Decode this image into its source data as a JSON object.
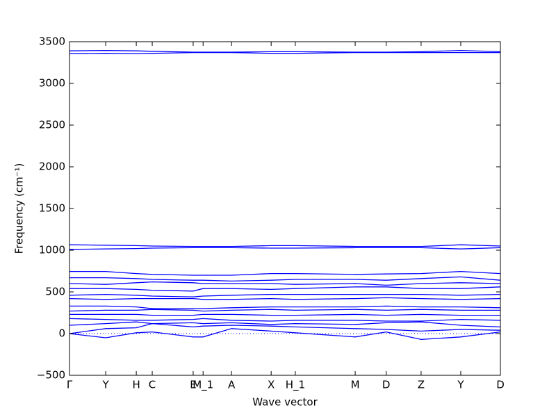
{
  "chart_data": {
    "type": "line",
    "x_label": "Wave vector",
    "y_label": "Frequency (cm⁻¹)",
    "xlim": [
      0,
      1
    ],
    "ylim": [
      -500,
      3500
    ],
    "xticks": [
      {
        "value": 0,
        "label": "Γ"
      },
      {
        "value": 0.084,
        "label": "Y"
      },
      {
        "value": 0.155,
        "label": "H"
      },
      {
        "value": 0.192,
        "label": "C"
      },
      {
        "value": 0.287,
        "label": "E"
      },
      {
        "value": 0.31,
        "label": "M_1"
      },
      {
        "value": 0.376,
        "label": "A"
      },
      {
        "value": 0.468,
        "label": "X"
      },
      {
        "value": 0.524,
        "label": "H_1"
      },
      {
        "value": 0.663,
        "label": "M"
      },
      {
        "value": 0.735,
        "label": "D"
      },
      {
        "value": 0.816,
        "label": "Z"
      },
      {
        "value": 0.908,
        "label": "Y"
      },
      {
        "value": 1,
        "label": "D"
      }
    ],
    "yticks": [
      {
        "value": -500,
        "label": "−500"
      },
      0,
      500,
      1000,
      1500,
      2000,
      2500,
      3000,
      3500
    ],
    "zero_line": 0,
    "x": [
      0,
      0.084,
      0.155,
      0.192,
      0.287,
      0.31,
      0.376,
      0.468,
      0.524,
      0.663,
      0.735,
      0.816,
      0.908,
      1
    ],
    "color": "#0000ff",
    "series": [
      {
        "values": [
          3355,
          3360,
          3355,
          3360,
          3370,
          3370,
          3370,
          3360,
          3360,
          3370,
          3370,
          3370,
          3370,
          3370
        ]
      },
      {
        "values": [
          3390,
          3395,
          3390,
          3385,
          3375,
          3375,
          3375,
          3380,
          3380,
          3375,
          3375,
          3380,
          3395,
          3380
        ]
      },
      {
        "values": [
          1065,
          1060,
          1055,
          1050,
          1045,
          1045,
          1045,
          1055,
          1055,
          1045,
          1045,
          1045,
          1065,
          1050
        ]
      },
      {
        "values": [
          1010,
          1015,
          1020,
          1025,
          1030,
          1030,
          1030,
          1025,
          1025,
          1030,
          1030,
          1030,
          1015,
          1030
        ]
      },
      {
        "values": [
          745,
          745,
          720,
          710,
          700,
          700,
          700,
          720,
          720,
          710,
          715,
          720,
          745,
          720
        ]
      },
      {
        "values": [
          670,
          670,
          660,
          650,
          640,
          640,
          630,
          640,
          650,
          650,
          640,
          660,
          680,
          640
        ]
      },
      {
        "values": [
          600,
          590,
          610,
          620,
          610,
          600,
          600,
          600,
          590,
          600,
          580,
          600,
          610,
          600
        ]
      },
      {
        "values": [
          540,
          540,
          530,
          520,
          510,
          540,
          540,
          530,
          540,
          560,
          560,
          540,
          540,
          560
        ]
      },
      {
        "values": [
          460,
          470,
          460,
          450,
          440,
          450,
          460,
          470,
          470,
          470,
          470,
          470,
          460,
          470
        ]
      },
      {
        "values": [
          420,
          410,
          420,
          420,
          420,
          410,
          410,
          420,
          410,
          420,
          430,
          420,
          410,
          420
        ]
      },
      {
        "values": [
          330,
          330,
          320,
          300,
          300,
          300,
          310,
          320,
          320,
          320,
          330,
          320,
          320,
          310
        ]
      },
      {
        "values": [
          270,
          280,
          280,
          290,
          280,
          270,
          280,
          290,
          280,
          290,
          280,
          290,
          280,
          280
        ]
      },
      {
        "values": [
          230,
          230,
          230,
          220,
          220,
          230,
          230,
          220,
          220,
          230,
          220,
          230,
          220,
          220
        ]
      },
      {
        "values": [
          180,
          170,
          160,
          160,
          170,
          180,
          160,
          150,
          160,
          160,
          150,
          150,
          170,
          160
        ]
      },
      {
        "values": [
          100,
          120,
          140,
          120,
          130,
          120,
          130,
          110,
          120,
          110,
          130,
          140,
          100,
          80
        ]
      },
      {
        "values": [
          0,
          60,
          70,
          120,
          80,
          90,
          100,
          90,
          80,
          60,
          50,
          30,
          50,
          40
        ]
      },
      {
        "values": [
          0,
          -50,
          10,
          20,
          -40,
          -40,
          60,
          30,
          10,
          -40,
          20,
          -70,
          -40,
          20
        ]
      }
    ]
  }
}
